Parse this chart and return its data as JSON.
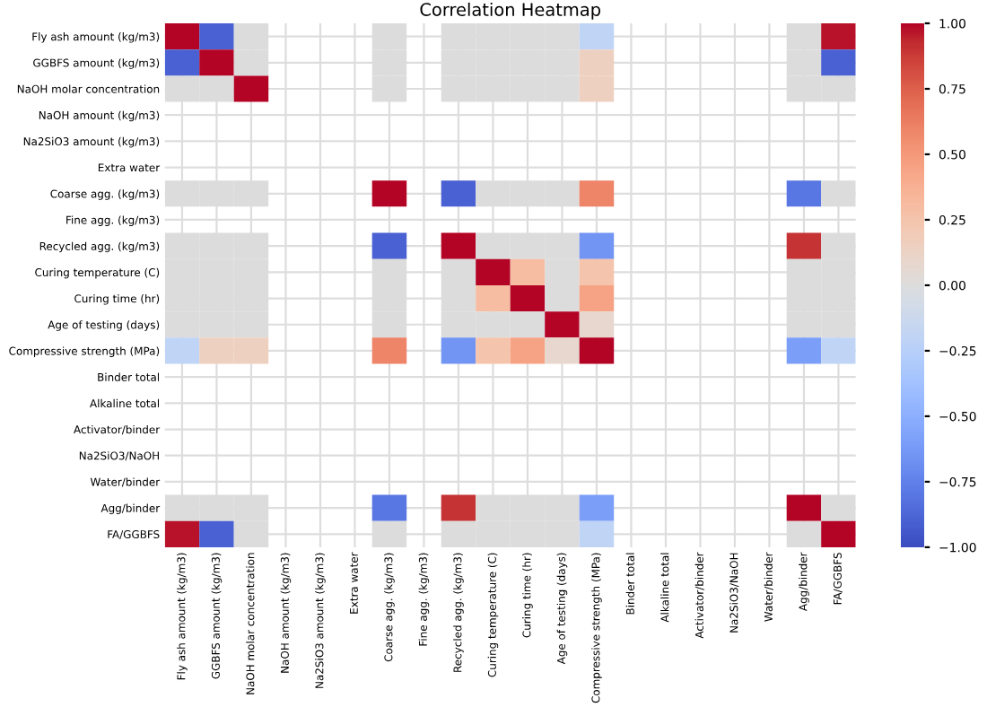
{
  "chart_data": {
    "type": "heatmap",
    "title": "Correlation Heatmap",
    "categories": [
      "Fly ash amount (kg/m3)",
      "GGBFS amount (kg/m3)",
      "NaOH molar concentration",
      "NaOH amount (kg/m3)",
      "Na2SiO3 amount (kg/m3)",
      "Extra water",
      "Coarse agg. (kg/m3)",
      "Fine agg. (kg/m3)",
      "Recycled agg. (kg/m3)",
      "Curing temperature (C)",
      "Curing time (hr)",
      "Age of testing (days)",
      "Compressive strength (MPa)",
      "Binder total",
      "Alkaline total",
      "Activator/binder",
      "Na2SiO3/NaOH",
      "Water/binder",
      "Agg/binder",
      "FA/GGBFS"
    ],
    "y_categories": [
      "Fly ash amount (kg/m3)",
      "GGBFS amount (kg/m3)",
      "NaOH molar concentration",
      "NaOH amount (kg/m3)",
      "Na2SiO3 amount (kg/m3)",
      "Extra water",
      "Coarse agg. (kg/m3)",
      "Fine agg. (kg/m3)",
      "Recycled agg. (kg/m3)",
      "Curing temperature (C)",
      "Curing time (hr)",
      "Age of testing (days)",
      "Compressive strength (MPa)",
      "Binder total",
      "Alkaline total",
      "Activator/binder",
      "Na2SiO3/NaOH",
      "Water/binder",
      "Agg/binder",
      "FA/GGBFS"
    ],
    "cells": [
      [
        1,
        -0.9,
        0,
        null,
        null,
        null,
        0,
        null,
        0,
        0,
        0,
        0,
        -0.2,
        null,
        null,
        null,
        null,
        null,
        0,
        0.97
      ],
      [
        -0.9,
        1,
        0,
        null,
        null,
        null,
        0,
        null,
        0,
        0,
        0,
        0,
        0.15,
        null,
        null,
        null,
        null,
        null,
        0,
        -0.9
      ],
      [
        0,
        0,
        1,
        null,
        null,
        null,
        0,
        null,
        0,
        0,
        0,
        0,
        0.15,
        null,
        null,
        null,
        null,
        null,
        0,
        0
      ],
      [
        null,
        null,
        null,
        null,
        null,
        null,
        null,
        null,
        null,
        null,
        null,
        null,
        null,
        null,
        null,
        null,
        null,
        null,
        null,
        null
      ],
      [
        null,
        null,
        null,
        null,
        null,
        null,
        null,
        null,
        null,
        null,
        null,
        null,
        null,
        null,
        null,
        null,
        null,
        null,
        null,
        null
      ],
      [
        null,
        null,
        null,
        null,
        null,
        null,
        null,
        null,
        null,
        null,
        null,
        null,
        null,
        null,
        null,
        null,
        null,
        null,
        null,
        null
      ],
      [
        0,
        0,
        0,
        null,
        null,
        null,
        1,
        null,
        -0.9,
        0,
        0,
        0,
        0.6,
        null,
        null,
        null,
        null,
        null,
        -0.8,
        0
      ],
      [
        null,
        null,
        null,
        null,
        null,
        null,
        null,
        null,
        null,
        null,
        null,
        null,
        null,
        null,
        null,
        null,
        null,
        null,
        null,
        null
      ],
      [
        0,
        0,
        0,
        null,
        null,
        null,
        -0.9,
        null,
        1,
        0,
        0,
        0,
        -0.65,
        null,
        null,
        null,
        null,
        null,
        0.9,
        0
      ],
      [
        0,
        0,
        0,
        null,
        null,
        null,
        0,
        null,
        0,
        1,
        0.3,
        0,
        0.25,
        null,
        null,
        null,
        null,
        null,
        0,
        0
      ],
      [
        0,
        0,
        0,
        null,
        null,
        null,
        0,
        null,
        0,
        0.3,
        1,
        0,
        0.45,
        null,
        null,
        null,
        null,
        null,
        0,
        0
      ],
      [
        0,
        0,
        0,
        null,
        null,
        null,
        0,
        null,
        0,
        0,
        0,
        1,
        0.08,
        null,
        null,
        null,
        null,
        null,
        0,
        0
      ],
      [
        -0.2,
        0.15,
        0.15,
        null,
        null,
        null,
        0.6,
        null,
        -0.65,
        0.25,
        0.45,
        0.08,
        1,
        null,
        null,
        null,
        null,
        null,
        -0.6,
        -0.2
      ],
      [
        null,
        null,
        null,
        null,
        null,
        null,
        null,
        null,
        null,
        null,
        null,
        null,
        null,
        null,
        null,
        null,
        null,
        null,
        null,
        null
      ],
      [
        null,
        null,
        null,
        null,
        null,
        null,
        null,
        null,
        null,
        null,
        null,
        null,
        null,
        null,
        null,
        null,
        null,
        null,
        null,
        null
      ],
      [
        null,
        null,
        null,
        null,
        null,
        null,
        null,
        null,
        null,
        null,
        null,
        null,
        null,
        null,
        null,
        null,
        null,
        null,
        null,
        null
      ],
      [
        null,
        null,
        null,
        null,
        null,
        null,
        null,
        null,
        null,
        null,
        null,
        null,
        null,
        null,
        null,
        null,
        null,
        null,
        null,
        null
      ],
      [
        null,
        null,
        null,
        null,
        null,
        null,
        null,
        null,
        null,
        null,
        null,
        null,
        null,
        null,
        null,
        null,
        null,
        null,
        null,
        null
      ],
      [
        0,
        0,
        0,
        null,
        null,
        null,
        -0.8,
        null,
        0.9,
        0,
        0,
        0,
        -0.6,
        null,
        null,
        null,
        null,
        null,
        1,
        0
      ],
      [
        0.97,
        -0.9,
        0,
        null,
        null,
        null,
        0,
        null,
        0,
        0,
        0,
        0,
        -0.2,
        null,
        null,
        null,
        null,
        null,
        0,
        1
      ]
    ],
    "clim": [
      -1,
      1
    ],
    "cticks": [
      {
        "value": -1,
        "label": "−1.00"
      },
      {
        "value": -0.75,
        "label": "−0.75"
      },
      {
        "value": -0.5,
        "label": "−0.50"
      },
      {
        "value": -0.25,
        "label": "−0.25"
      },
      {
        "value": 0,
        "label": "0.00"
      },
      {
        "value": 0.25,
        "label": "0.25"
      },
      {
        "value": 0.5,
        "label": "0.50"
      },
      {
        "value": 0.75,
        "label": "0.75"
      },
      {
        "value": 1,
        "label": "1.00"
      }
    ],
    "grid": true
  }
}
